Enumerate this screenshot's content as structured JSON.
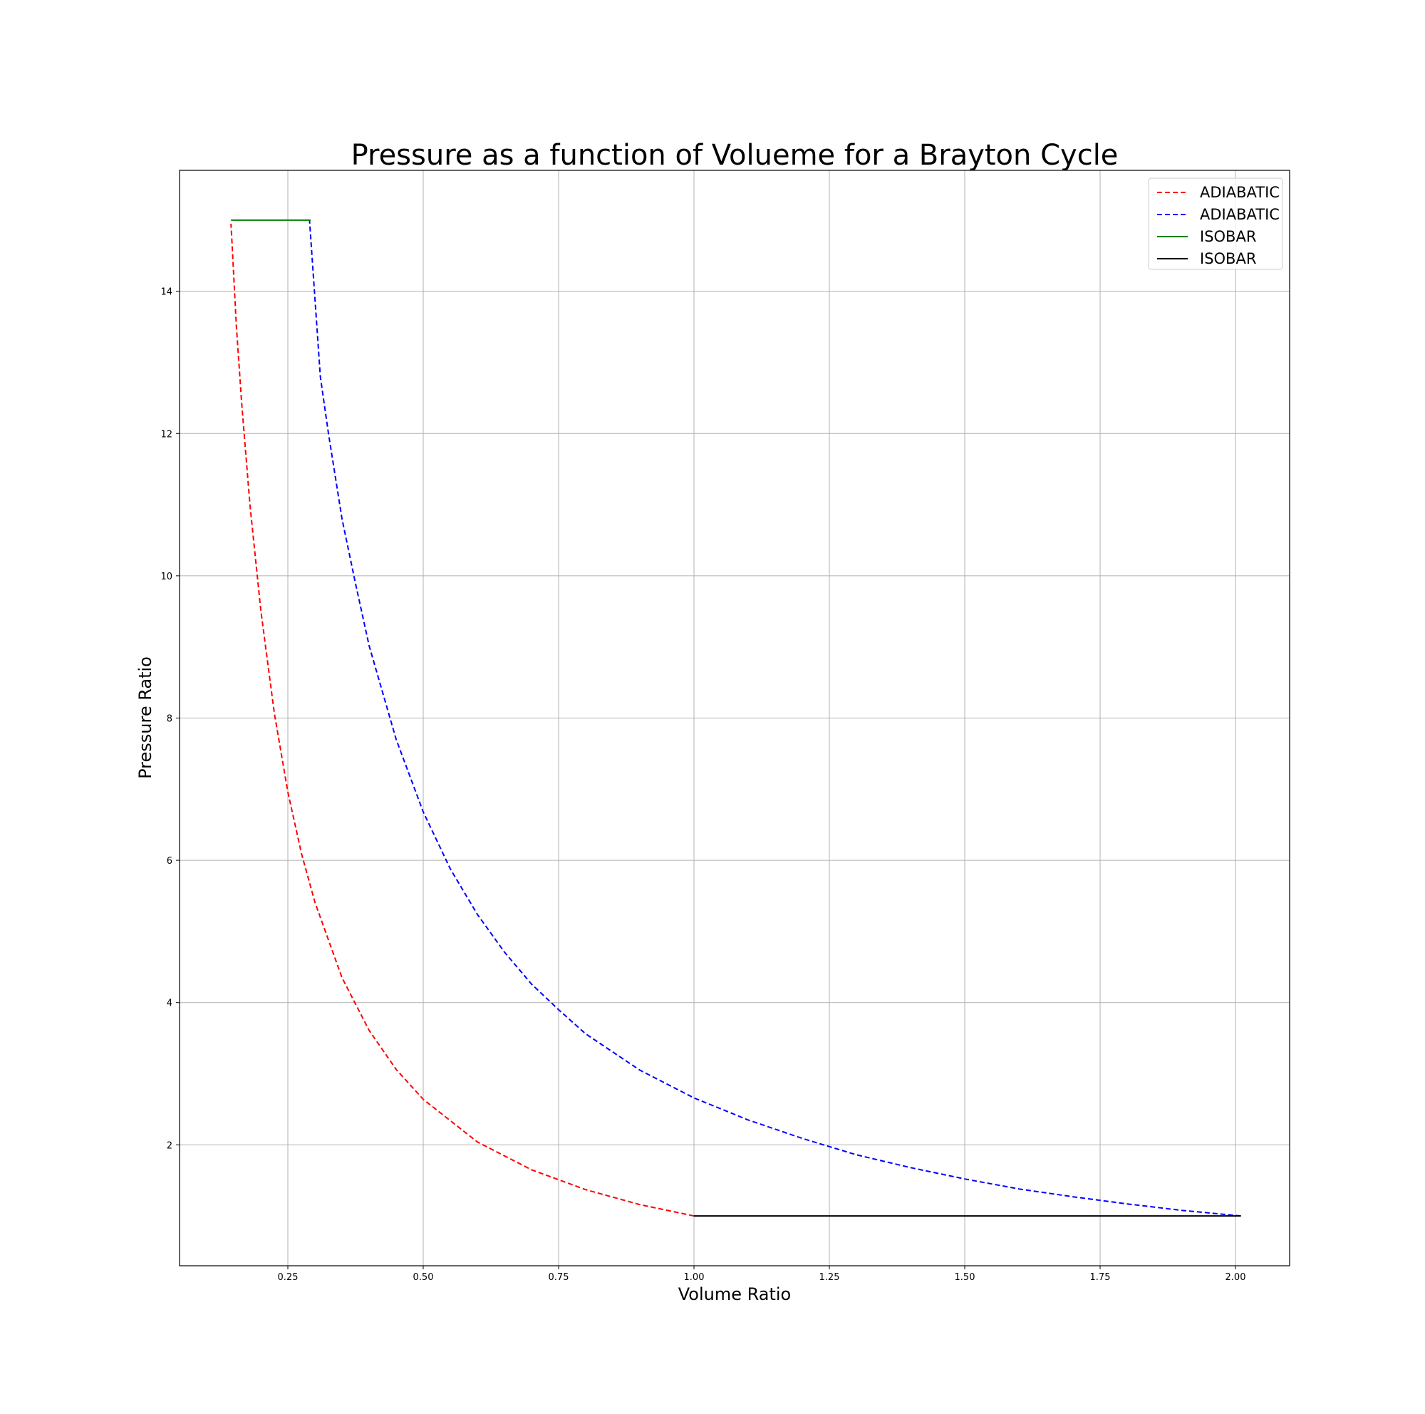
{
  "chart_data": {
    "type": "line",
    "title": "Pressure as a function of Volueme for a Brayton Cycle",
    "xlabel": "Volume Ratio",
    "ylabel": "Pressure Ratio",
    "xlim": [
      0.05,
      2.1
    ],
    "ylim": [
      0.3,
      15.7
    ],
    "grid": true,
    "legend_position": "top-right",
    "xticks": [
      0.25,
      0.5,
      0.75,
      1.0,
      1.25,
      1.5,
      1.75,
      2.0
    ],
    "xtick_labels": [
      "0.25",
      "0.50",
      "0.75",
      "1.00",
      "1.25",
      "1.50",
      "1.75",
      "2.00"
    ],
    "yticks": [
      2,
      4,
      6,
      8,
      10,
      12,
      14
    ],
    "ytick_labels": [
      "2",
      "4",
      "6",
      "8",
      "10",
      "12",
      "14"
    ],
    "series": [
      {
        "name": "ADIABATIC",
        "color": "#ff0000",
        "style": "dashed",
        "x": [
          1.0,
          0.9,
          0.8,
          0.7,
          0.6,
          0.5,
          0.45,
          0.4,
          0.35,
          0.3,
          0.275,
          0.25,
          0.225,
          0.2,
          0.18,
          0.165,
          0.155,
          0.145
        ],
        "y": [
          1.0,
          1.16,
          1.37,
          1.65,
          2.04,
          2.64,
          3.06,
          3.61,
          4.35,
          5.41,
          6.1,
          6.96,
          8.07,
          9.52,
          11.0,
          12.4,
          13.5,
          14.95
        ]
      },
      {
        "name": "ADIABATIC",
        "color": "#0000ff",
        "style": "dashed",
        "x": [
          2.01,
          1.9,
          1.8,
          1.7,
          1.6,
          1.5,
          1.4,
          1.3,
          1.2,
          1.1,
          1.0,
          0.9,
          0.8,
          0.75,
          0.7,
          0.65,
          0.6,
          0.55,
          0.5,
          0.45,
          0.4,
          0.375,
          0.35,
          0.325,
          0.31,
          0.3,
          0.29
        ],
        "y": [
          1.0,
          1.08,
          1.17,
          1.27,
          1.38,
          1.52,
          1.68,
          1.86,
          2.09,
          2.35,
          2.66,
          3.05,
          3.56,
          3.9,
          4.26,
          4.71,
          5.24,
          5.88,
          6.68,
          7.7,
          9.02,
          9.89,
          10.8,
          12.0,
          12.8,
          13.9,
          15.0
        ]
      },
      {
        "name": "ISOBAR",
        "color": "#008000",
        "style": "solid",
        "x": [
          0.145,
          0.292
        ],
        "y": [
          15.0,
          15.0
        ]
      },
      {
        "name": "ISOBAR",
        "color": "#000000",
        "style": "solid",
        "x": [
          1.0,
          2.01
        ],
        "y": [
          1.0,
          1.0
        ]
      }
    ]
  }
}
